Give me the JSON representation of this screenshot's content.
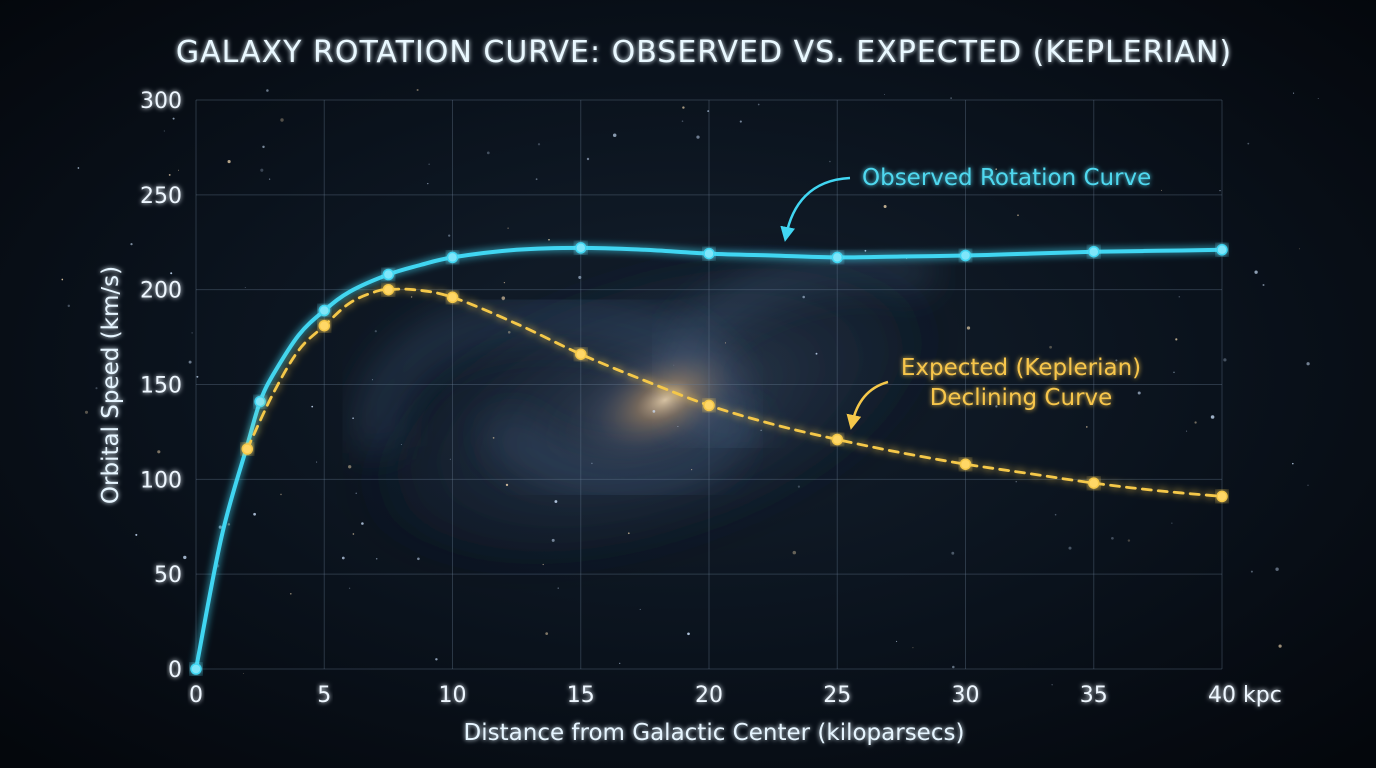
{
  "chart_data": {
    "type": "line",
    "title": "GALAXY ROTATION CURVE: OBSERVED VS. EXPECTED (KEPLERIAN)",
    "xlabel": "Distance from Galactic Center (kiloparsecs)",
    "ylabel": "Orbital Speed (km/s)",
    "xlim": [
      0,
      40
    ],
    "ylim": [
      0,
      300
    ],
    "x_ticks": [
      "0",
      "5",
      "10",
      "15",
      "20",
      "25",
      "30",
      "35",
      "40 kpc"
    ],
    "y_ticks": [
      "0",
      "50",
      "100",
      "150",
      "200",
      "250",
      "300"
    ],
    "grid": true,
    "series": [
      {
        "name": "Observed Rotation Curve",
        "style": "solid",
        "color": "#41d6f2",
        "points": [
          [
            0,
            0
          ],
          [
            2.5,
            141
          ],
          [
            5,
            189
          ],
          [
            7.5,
            208
          ],
          [
            10,
            217
          ],
          [
            15,
            222
          ],
          [
            20,
            219
          ],
          [
            25,
            217
          ],
          [
            30,
            218
          ],
          [
            35,
            220
          ],
          [
            40,
            221
          ]
        ],
        "curve": [
          [
            0,
            0
          ],
          [
            1,
            70
          ],
          [
            2,
            118
          ],
          [
            2.5,
            141
          ],
          [
            3,
            155
          ],
          [
            4,
            176
          ],
          [
            5,
            189
          ],
          [
            6,
            199
          ],
          [
            7.5,
            208
          ],
          [
            8.75,
            213
          ],
          [
            10,
            217
          ],
          [
            12.5,
            221
          ],
          [
            15,
            222
          ],
          [
            17.5,
            221
          ],
          [
            20,
            219
          ],
          [
            22.5,
            218
          ],
          [
            25,
            217
          ],
          [
            27.5,
            217.5
          ],
          [
            30,
            218
          ],
          [
            32.5,
            219
          ],
          [
            35,
            220
          ],
          [
            37.5,
            220.5
          ],
          [
            40,
            221
          ]
        ]
      },
      {
        "name": "Expected (Keplerian) Declining Curve",
        "style": "dashed",
        "color": "#f5c84a",
        "points": [
          [
            2,
            116
          ],
          [
            5,
            181
          ],
          [
            7.5,
            200
          ],
          [
            10,
            196
          ],
          [
            15,
            166
          ],
          [
            20,
            139
          ],
          [
            25,
            121
          ],
          [
            30,
            108
          ],
          [
            35,
            98
          ],
          [
            40,
            91
          ]
        ],
        "curve": [
          [
            2,
            116
          ],
          [
            3,
            145
          ],
          [
            4,
            168
          ],
          [
            5,
            181
          ],
          [
            6,
            193
          ],
          [
            7,
            199
          ],
          [
            7.5,
            200
          ],
          [
            8.5,
            200
          ],
          [
            10,
            196
          ],
          [
            12.5,
            182
          ],
          [
            15,
            166
          ],
          [
            17.5,
            152
          ],
          [
            20,
            139
          ],
          [
            22.5,
            129
          ],
          [
            25,
            121
          ],
          [
            27.5,
            114
          ],
          [
            30,
            108
          ],
          [
            32.5,
            103
          ],
          [
            35,
            98
          ],
          [
            37.5,
            94
          ],
          [
            40,
            91
          ]
        ]
      }
    ],
    "annotations": [
      {
        "series": 0,
        "lines": [
          "Observed Rotation Curve"
        ]
      },
      {
        "series": 1,
        "lines": [
          "Expected (Keplerian)",
          "Declining Curve"
        ]
      }
    ]
  }
}
